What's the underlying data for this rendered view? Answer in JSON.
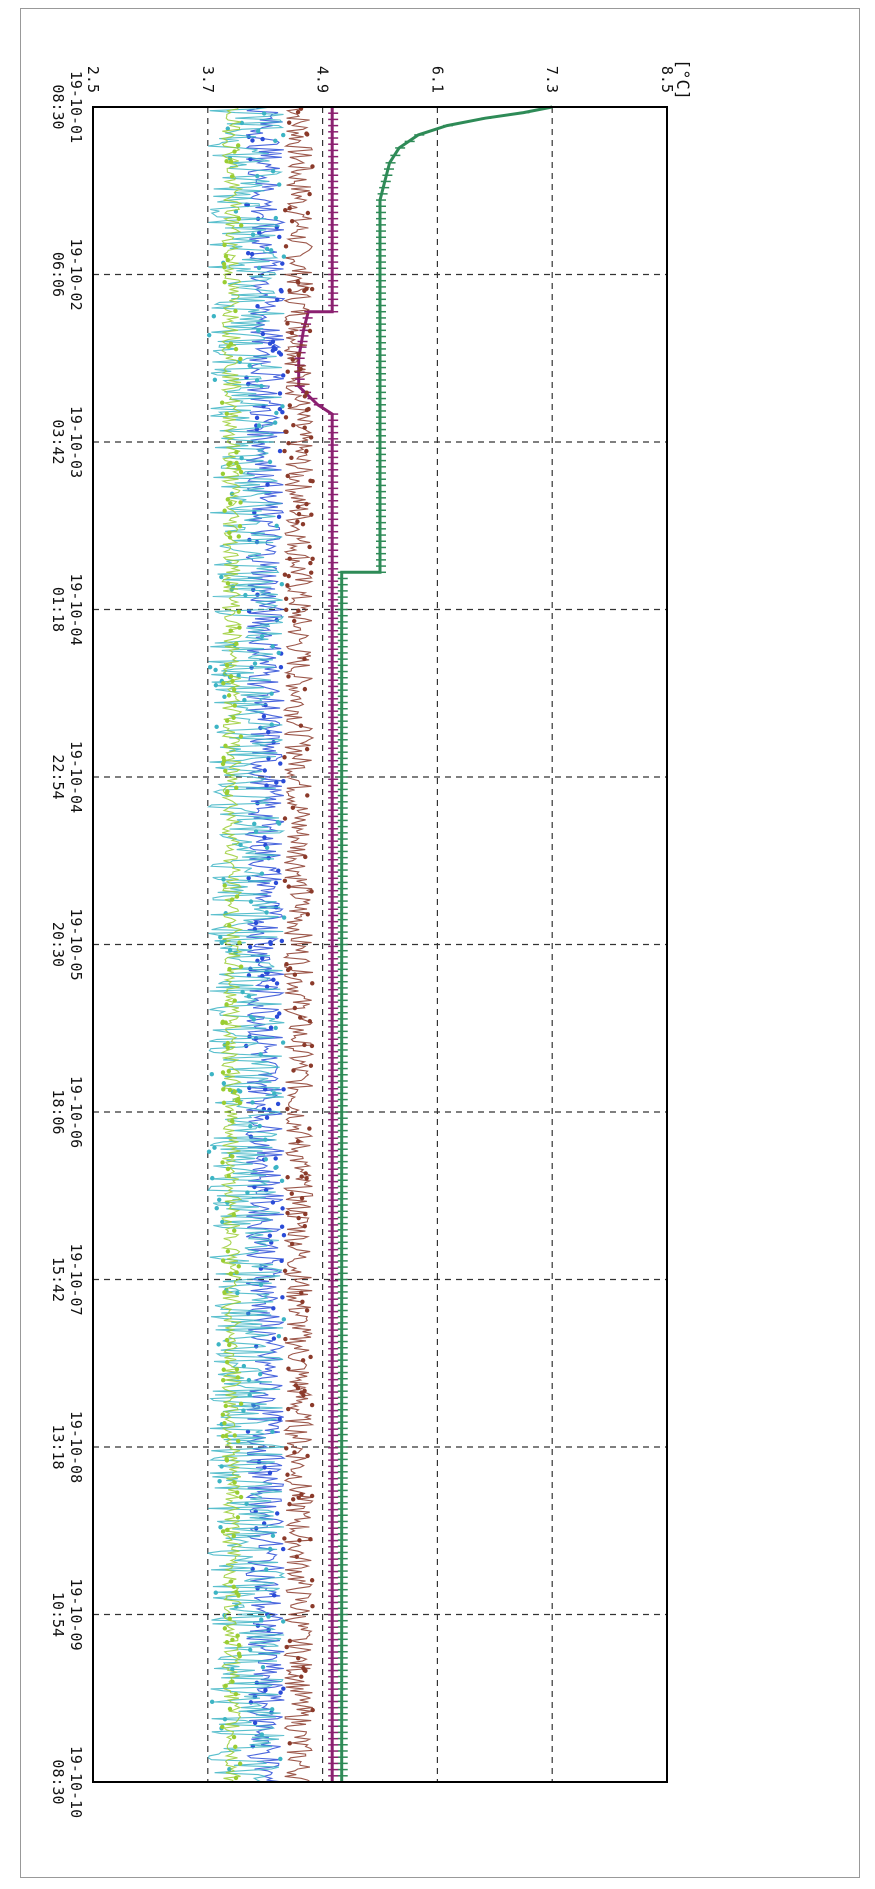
{
  "chart_data": {
    "type": "line",
    "orientation": "rotated-90",
    "unit_label": "[°C]",
    "title": "",
    "xlabel": "",
    "ylabel": "",
    "y_ticks": [
      "2.5",
      "3.7",
      "4.9",
      "6.1",
      "7.3",
      "8.5"
    ],
    "y_tick_values": [
      2.5,
      3.7,
      4.9,
      6.1,
      7.3,
      8.5
    ],
    "ylim": [
      2.5,
      8.5
    ],
    "x_ticks": [
      {
        "date": "19-10-01",
        "time": "08:30"
      },
      {
        "date": "19-10-02",
        "time": "06:06"
      },
      {
        "date": "19-10-03",
        "time": "03:42"
      },
      {
        "date": "19-10-04",
        "time": "01:18"
      },
      {
        "date": "19-10-04",
        "time": "22:54"
      },
      {
        "date": "19-10-05",
        "time": "20:30"
      },
      {
        "date": "19-10-06",
        "time": "18:06"
      },
      {
        "date": "19-10-07",
        "time": "15:42"
      },
      {
        "date": "19-10-08",
        "time": "13:18"
      },
      {
        "date": "19-10-09",
        "time": "10:54"
      },
      {
        "date": "19-10-10",
        "time": "08:30"
      }
    ],
    "xlim": [
      "19-10-01 08:30",
      "19-10-10 08:30"
    ],
    "grid": true,
    "legend": "none",
    "series": [
      {
        "color": "#2e8b57",
        "x_days": [
          0,
          0.03,
          0.06,
          0.1,
          0.15,
          0.22,
          0.3,
          0.4,
          0.5,
          2.5,
          2.5,
          9.0
        ],
        "values": [
          7.3,
          7.0,
          6.6,
          6.2,
          5.9,
          5.7,
          5.6,
          5.55,
          5.5,
          5.5,
          5.1,
          5.1
        ]
      },
      {
        "color": "#8b2070",
        "x_days": [
          0,
          1.1,
          1.1,
          1.2,
          1.35,
          1.5,
          1.6,
          1.65,
          9.0
        ],
        "values": [
          5.0,
          5.0,
          4.75,
          4.7,
          4.65,
          4.65,
          4.85,
          5.0,
          5.0
        ]
      },
      {
        "color": "#8b3a2a",
        "x_days": [
          0,
          9.0
        ],
        "values": [
          4.6,
          4.6
        ],
        "noise": [
          4.5,
          4.8
        ]
      },
      {
        "color": "#2a4bd7",
        "x_days": [
          0,
          9.0
        ],
        "values": [
          4.3,
          4.3
        ],
        "noise": [
          4.1,
          4.5
        ]
      },
      {
        "color": "#3cb4c4",
        "x_days": [
          0,
          9.0
        ],
        "values": [
          4.1,
          4.1
        ],
        "noise": [
          3.7,
          4.5
        ]
      },
      {
        "color": "#9acd32",
        "x_days": [
          0,
          9.0
        ],
        "values": [
          3.95,
          3.95
        ],
        "noise": [
          3.85,
          4.05
        ]
      }
    ]
  }
}
